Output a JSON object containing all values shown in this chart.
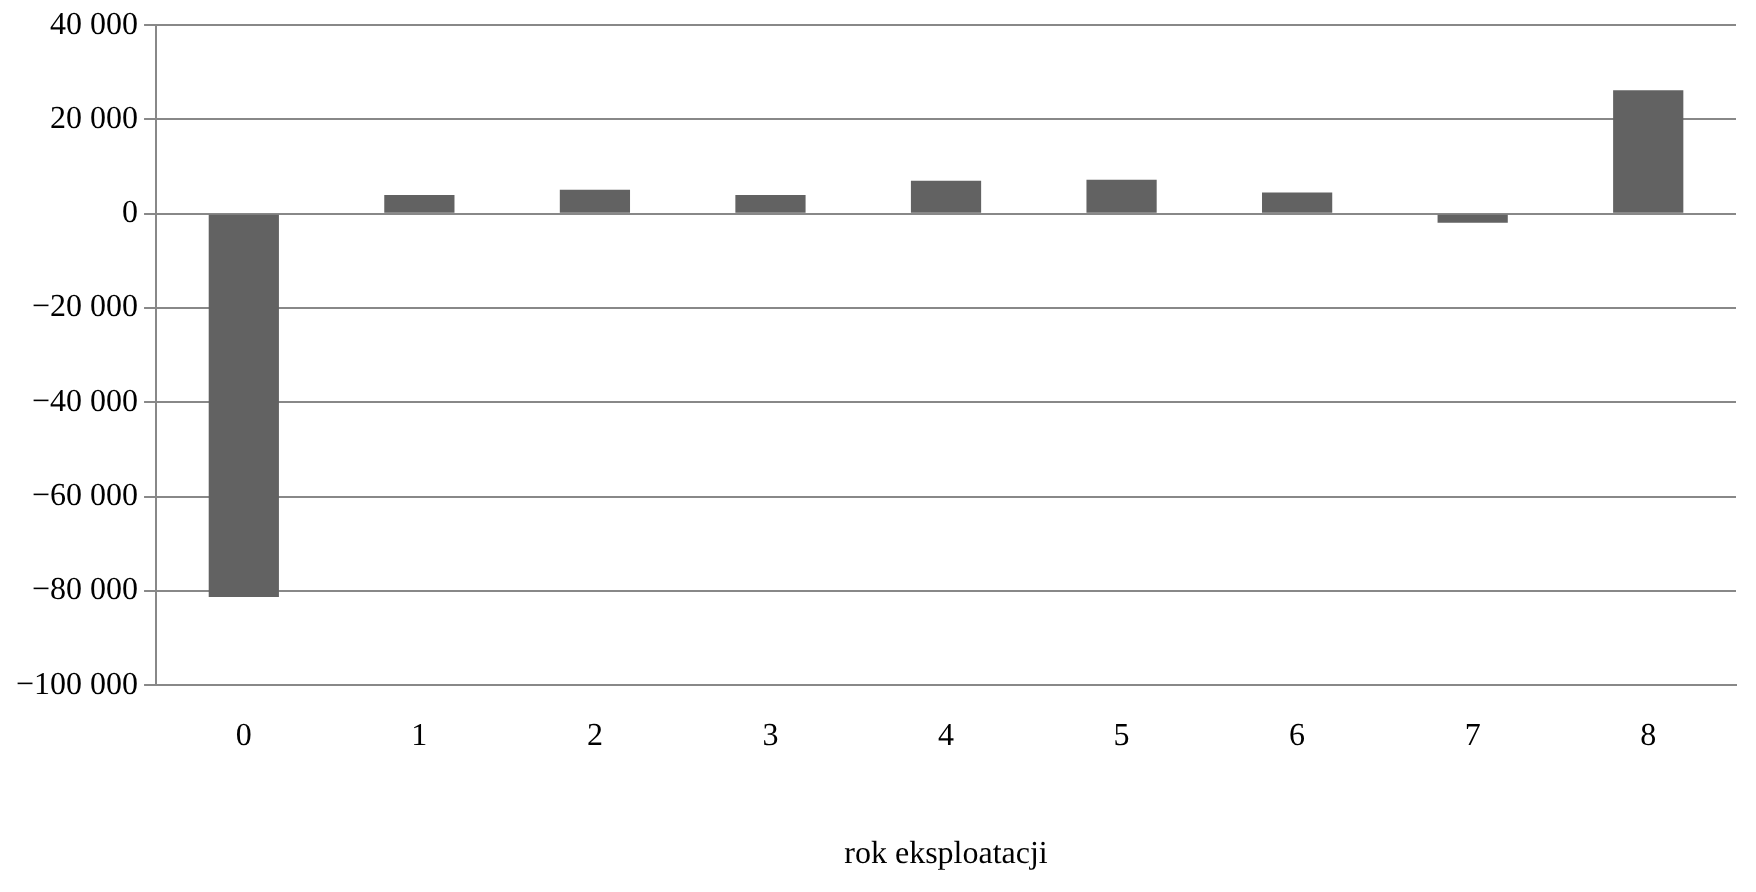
{
  "chart_data": {
    "type": "bar",
    "xlabel": "rok eksploatacji",
    "categories": [
      "0",
      "1",
      "2",
      "3",
      "4",
      "5",
      "6",
      "7",
      "8"
    ],
    "values": [
      -81300,
      4000,
      5100,
      4000,
      7000,
      7200,
      4500,
      -1900,
      26200
    ],
    "color": "#626262",
    "ylim": [
      -100000,
      40000
    ],
    "yticks": [
      {
        "value": -100000,
        "label": "−100 000"
      },
      {
        "value": -80000,
        "label": "−80 000"
      },
      {
        "value": -60000,
        "label": "−60 000"
      },
      {
        "value": -40000,
        "label": "−40 000"
      },
      {
        "value": -20000,
        "label": "−20 000"
      },
      {
        "value": 0,
        "label": "0"
      },
      {
        "value": 20000,
        "label": "20 000"
      },
      {
        "value": 40000,
        "label": "40 000"
      }
    ],
    "grid": "y",
    "legend": false
  }
}
